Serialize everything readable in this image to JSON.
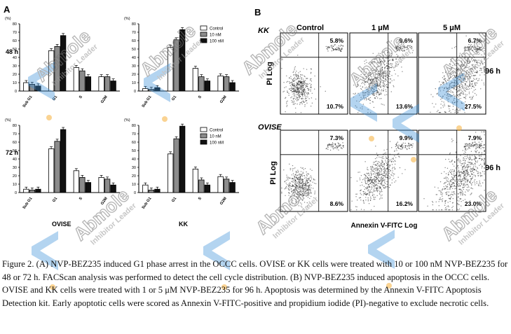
{
  "panelA": {
    "letter": "A",
    "ylabel": "(%)",
    "legend": [
      "Control",
      "10 nM",
      "100 nM"
    ],
    "categories": [
      "Sub G1",
      "G1",
      "S",
      "G2M"
    ],
    "row_labels": [
      "48 h",
      "72 h"
    ],
    "col_labels": [
      "OVISE",
      "KK"
    ],
    "yticks": [
      "0",
      "10",
      "20",
      "30",
      "40",
      "50",
      "60",
      "70",
      "80"
    ]
  },
  "panelB": {
    "letter": "B",
    "col_headers": [
      "Control",
      "1 μM",
      "5 μM"
    ],
    "rows": [
      {
        "cell": "KK",
        "time": "96 h",
        "upper": [
          "5.8%",
          "9.6%",
          "6.7%"
        ],
        "lower": [
          "10.7%",
          "13.6%",
          "27.5%"
        ]
      },
      {
        "cell": "OVISE",
        "time": "96 h",
        "upper": [
          "7.3%",
          "9.9%",
          "7.9%"
        ],
        "lower": [
          "8.6%",
          "16.2%",
          "23.0%"
        ]
      }
    ],
    "ylabel": "PI Log",
    "xlabel": "Annexin V-FITC Log"
  },
  "watermark": {
    "brand": "Abmole",
    "tagline": "Inhibitor Leader"
  },
  "caption": "Figure 2. (A) NVP-BEZ235 induced G1 phase arrest in the OCCC cells. OVISE or KK cells were treated with 10 or 100 nM NVP-BEZ235 for 48 or 72 h. FACScan analysis was performed to detect the cell cycle distribution. (B) NVP-BEZ235 induced apoptosis in the OCCC cells. OVISE and KK cells were treated with 1 or 5 μM NVP-BEZ235 for 96 h. Apoptosis was determined by the Annexin V-FITC Apoptosis Detection kit. Early apoptotic cells were scored as Annexin V-FITC-positive and propidium iodide (PI)-negative to exclude necrotic cells.",
  "chart_data": [
    {
      "type": "bar",
      "title": "OVISE 48 h",
      "categories": [
        "Sub G1",
        "G1",
        "S",
        "G2M"
      ],
      "ylim": [
        0,
        80
      ],
      "series": [
        {
          "name": "Control",
          "values": [
            10,
            48,
            28,
            17
          ]
        },
        {
          "name": "10 nM",
          "values": [
            8,
            53,
            24,
            17
          ]
        },
        {
          "name": "100 nM",
          "values": [
            6,
            66,
            17,
            12
          ]
        }
      ]
    },
    {
      "type": "bar",
      "title": "KK 48 h",
      "categories": [
        "Sub G1",
        "G1",
        "S",
        "G2M"
      ],
      "ylim": [
        0,
        80
      ],
      "series": [
        {
          "name": "Control",
          "values": [
            3,
            52,
            27,
            18
          ]
        },
        {
          "name": "10 nM",
          "values": [
            2,
            61,
            17,
            17
          ]
        },
        {
          "name": "100 nM",
          "values": [
            4,
            73,
            12,
            10
          ]
        }
      ]
    },
    {
      "type": "bar",
      "title": "OVISE 72 h",
      "categories": [
        "Sub G1",
        "G1",
        "S",
        "G2M"
      ],
      "ylim": [
        0,
        80
      ],
      "series": [
        {
          "name": "Control",
          "values": [
            4,
            52,
            26,
            18
          ]
        },
        {
          "name": "10 nM",
          "values": [
            3,
            61,
            18,
            16
          ]
        },
        {
          "name": "100 nM",
          "values": [
            4,
            75,
            12,
            9
          ]
        }
      ]
    },
    {
      "type": "bar",
      "title": "KK 72 h",
      "categories": [
        "Sub G1",
        "G1",
        "S",
        "G2M"
      ],
      "ylim": [
        0,
        80
      ],
      "series": [
        {
          "name": "Control",
          "values": [
            9,
            46,
            28,
            19
          ]
        },
        {
          "name": "10 nM",
          "values": [
            3,
            64,
            15,
            16
          ]
        },
        {
          "name": "100 nM",
          "values": [
            4,
            79,
            9,
            12
          ]
        }
      ]
    }
  ]
}
